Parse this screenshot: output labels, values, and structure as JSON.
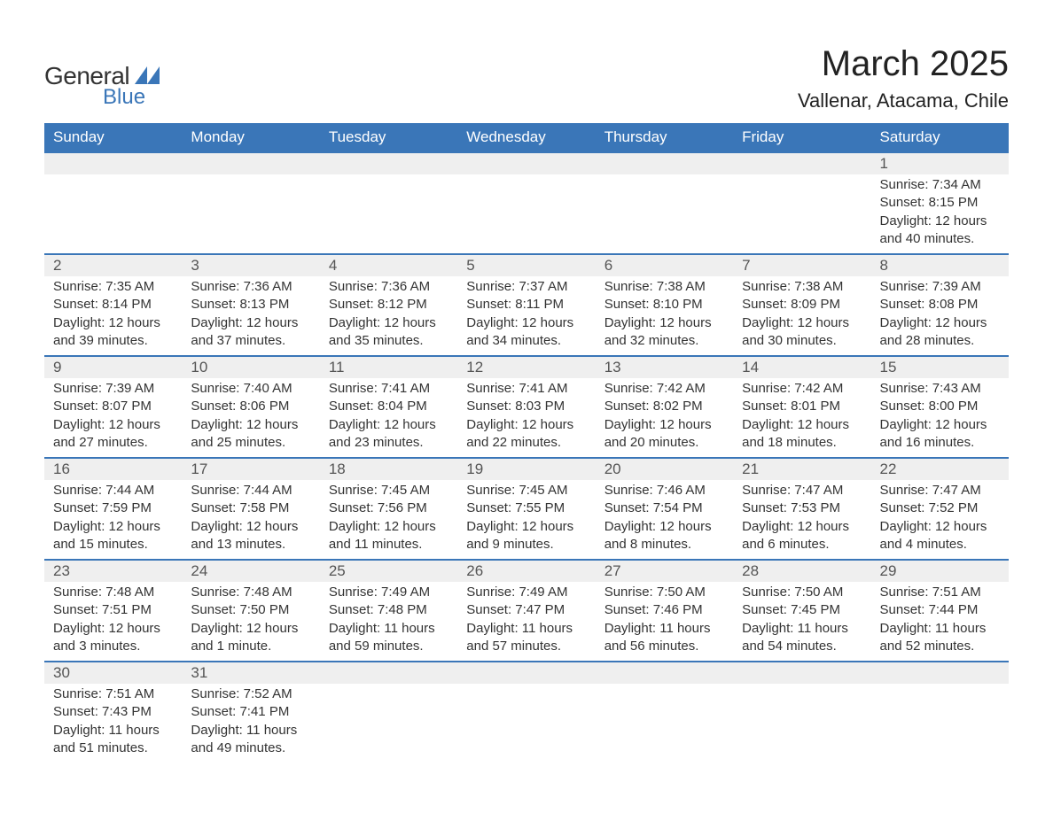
{
  "brand": {
    "word1": "General",
    "word2": "Blue",
    "word1_color": "#333333",
    "word2_color": "#3a76b8",
    "glyph_color": "#3a76b8"
  },
  "title": "March 2025",
  "location": "Vallenar, Atacama, Chile",
  "colors": {
    "header_bg": "#3a76b8",
    "header_text": "#ffffff",
    "daynum_bg": "#efefef",
    "row_divider": "#3a76b8",
    "body_text": "#333333",
    "page_bg": "#ffffff"
  },
  "fonts": {
    "title_size_pt": 30,
    "location_size_pt": 17,
    "header_size_pt": 13,
    "daynum_size_pt": 13,
    "data_size_pt": 11
  },
  "weekdays": [
    "Sunday",
    "Monday",
    "Tuesday",
    "Wednesday",
    "Thursday",
    "Friday",
    "Saturday"
  ],
  "weeks": [
    [
      null,
      null,
      null,
      null,
      null,
      null,
      {
        "n": "1",
        "sr": "Sunrise: 7:34 AM",
        "ss": "Sunset: 8:15 PM",
        "dl": "Daylight: 12 hours and 40 minutes."
      }
    ],
    [
      {
        "n": "2",
        "sr": "Sunrise: 7:35 AM",
        "ss": "Sunset: 8:14 PM",
        "dl": "Daylight: 12 hours and 39 minutes."
      },
      {
        "n": "3",
        "sr": "Sunrise: 7:36 AM",
        "ss": "Sunset: 8:13 PM",
        "dl": "Daylight: 12 hours and 37 minutes."
      },
      {
        "n": "4",
        "sr": "Sunrise: 7:36 AM",
        "ss": "Sunset: 8:12 PM",
        "dl": "Daylight: 12 hours and 35 minutes."
      },
      {
        "n": "5",
        "sr": "Sunrise: 7:37 AM",
        "ss": "Sunset: 8:11 PM",
        "dl": "Daylight: 12 hours and 34 minutes."
      },
      {
        "n": "6",
        "sr": "Sunrise: 7:38 AM",
        "ss": "Sunset: 8:10 PM",
        "dl": "Daylight: 12 hours and 32 minutes."
      },
      {
        "n": "7",
        "sr": "Sunrise: 7:38 AM",
        "ss": "Sunset: 8:09 PM",
        "dl": "Daylight: 12 hours and 30 minutes."
      },
      {
        "n": "8",
        "sr": "Sunrise: 7:39 AM",
        "ss": "Sunset: 8:08 PM",
        "dl": "Daylight: 12 hours and 28 minutes."
      }
    ],
    [
      {
        "n": "9",
        "sr": "Sunrise: 7:39 AM",
        "ss": "Sunset: 8:07 PM",
        "dl": "Daylight: 12 hours and 27 minutes."
      },
      {
        "n": "10",
        "sr": "Sunrise: 7:40 AM",
        "ss": "Sunset: 8:06 PM",
        "dl": "Daylight: 12 hours and 25 minutes."
      },
      {
        "n": "11",
        "sr": "Sunrise: 7:41 AM",
        "ss": "Sunset: 8:04 PM",
        "dl": "Daylight: 12 hours and 23 minutes."
      },
      {
        "n": "12",
        "sr": "Sunrise: 7:41 AM",
        "ss": "Sunset: 8:03 PM",
        "dl": "Daylight: 12 hours and 22 minutes."
      },
      {
        "n": "13",
        "sr": "Sunrise: 7:42 AM",
        "ss": "Sunset: 8:02 PM",
        "dl": "Daylight: 12 hours and 20 minutes."
      },
      {
        "n": "14",
        "sr": "Sunrise: 7:42 AM",
        "ss": "Sunset: 8:01 PM",
        "dl": "Daylight: 12 hours and 18 minutes."
      },
      {
        "n": "15",
        "sr": "Sunrise: 7:43 AM",
        "ss": "Sunset: 8:00 PM",
        "dl": "Daylight: 12 hours and 16 minutes."
      }
    ],
    [
      {
        "n": "16",
        "sr": "Sunrise: 7:44 AM",
        "ss": "Sunset: 7:59 PM",
        "dl": "Daylight: 12 hours and 15 minutes."
      },
      {
        "n": "17",
        "sr": "Sunrise: 7:44 AM",
        "ss": "Sunset: 7:58 PM",
        "dl": "Daylight: 12 hours and 13 minutes."
      },
      {
        "n": "18",
        "sr": "Sunrise: 7:45 AM",
        "ss": "Sunset: 7:56 PM",
        "dl": "Daylight: 12 hours and 11 minutes."
      },
      {
        "n": "19",
        "sr": "Sunrise: 7:45 AM",
        "ss": "Sunset: 7:55 PM",
        "dl": "Daylight: 12 hours and 9 minutes."
      },
      {
        "n": "20",
        "sr": "Sunrise: 7:46 AM",
        "ss": "Sunset: 7:54 PM",
        "dl": "Daylight: 12 hours and 8 minutes."
      },
      {
        "n": "21",
        "sr": "Sunrise: 7:47 AM",
        "ss": "Sunset: 7:53 PM",
        "dl": "Daylight: 12 hours and 6 minutes."
      },
      {
        "n": "22",
        "sr": "Sunrise: 7:47 AM",
        "ss": "Sunset: 7:52 PM",
        "dl": "Daylight: 12 hours and 4 minutes."
      }
    ],
    [
      {
        "n": "23",
        "sr": "Sunrise: 7:48 AM",
        "ss": "Sunset: 7:51 PM",
        "dl": "Daylight: 12 hours and 3 minutes."
      },
      {
        "n": "24",
        "sr": "Sunrise: 7:48 AM",
        "ss": "Sunset: 7:50 PM",
        "dl": "Daylight: 12 hours and 1 minute."
      },
      {
        "n": "25",
        "sr": "Sunrise: 7:49 AM",
        "ss": "Sunset: 7:48 PM",
        "dl": "Daylight: 11 hours and 59 minutes."
      },
      {
        "n": "26",
        "sr": "Sunrise: 7:49 AM",
        "ss": "Sunset: 7:47 PM",
        "dl": "Daylight: 11 hours and 57 minutes."
      },
      {
        "n": "27",
        "sr": "Sunrise: 7:50 AM",
        "ss": "Sunset: 7:46 PM",
        "dl": "Daylight: 11 hours and 56 minutes."
      },
      {
        "n": "28",
        "sr": "Sunrise: 7:50 AM",
        "ss": "Sunset: 7:45 PM",
        "dl": "Daylight: 11 hours and 54 minutes."
      },
      {
        "n": "29",
        "sr": "Sunrise: 7:51 AM",
        "ss": "Sunset: 7:44 PM",
        "dl": "Daylight: 11 hours and 52 minutes."
      }
    ],
    [
      {
        "n": "30",
        "sr": "Sunrise: 7:51 AM",
        "ss": "Sunset: 7:43 PM",
        "dl": "Daylight: 11 hours and 51 minutes."
      },
      {
        "n": "31",
        "sr": "Sunrise: 7:52 AM",
        "ss": "Sunset: 7:41 PM",
        "dl": "Daylight: 11 hours and 49 minutes."
      },
      null,
      null,
      null,
      null,
      null
    ]
  ]
}
